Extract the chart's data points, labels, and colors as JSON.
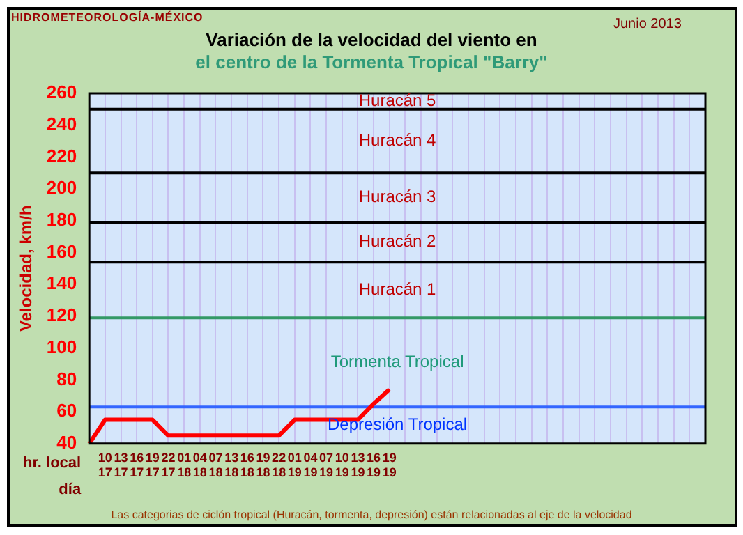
{
  "chart_data": {
    "type": "line",
    "title": "Variación de la velocidad del viento en",
    "subtitle": "el centro de la Tormenta Tropical \"Barry\"",
    "ylabel": "Velocidad, km/h",
    "xlabel": "hr. local\ndía",
    "categories": [
      null,
      "10\n17",
      "13\n17",
      "16\n17",
      "19\n17",
      "22\n17",
      "01\n18",
      "04\n18",
      "07\n18",
      "13\n18",
      "16\n18",
      "19\n18",
      "22\n18",
      "01\n19",
      "04\n19",
      "07\n19",
      "10\n19",
      "13\n19",
      "16\n19",
      "19\n19",
      null,
      null,
      null,
      null,
      null,
      null,
      null,
      null,
      null,
      null,
      null,
      null,
      null,
      null,
      null,
      null,
      null,
      null,
      null,
      null
    ],
    "series": [
      {
        "color": "#ff0000",
        "values": [
          40,
          55,
          55,
          55,
          55,
          45,
          45,
          45,
          45,
          45,
          45,
          45,
          45,
          55,
          55,
          55,
          55,
          55,
          65,
          74,
          null,
          null,
          null,
          null,
          null,
          null,
          null,
          null,
          null,
          null,
          null,
          null,
          null,
          null,
          null,
          null,
          null,
          null,
          null,
          null
        ]
      }
    ],
    "ylim": [
      40,
      260
    ],
    "yticks": [
      40,
      60,
      80,
      100,
      120,
      140,
      160,
      180,
      200,
      220,
      240,
      260
    ],
    "grid": "x",
    "legend": false,
    "marker": "none",
    "line_style": "solid",
    "ref_lines": [
      {
        "axis": "y",
        "value": 63,
        "color": "#3366ff",
        "label": "Tormenta Tropical"
      },
      {
        "axis": "y",
        "value": 119,
        "color": "#339966",
        "label": "Huracán 1"
      },
      {
        "axis": "y",
        "value": 154,
        "color": "#000000",
        "label": "Huracán 2"
      },
      {
        "axis": "y",
        "value": 179,
        "color": "#000000",
        "label": "Huracán 3"
      },
      {
        "axis": "y",
        "value": 210,
        "color": "#000000",
        "label": "Huracán 4"
      },
      {
        "axis": "y",
        "value": 250,
        "color": "#000000",
        "label": "Huracán 5"
      }
    ],
    "annotations": [
      "HIDROMETEOROLOGÍA-MÉXICO",
      "Junio 2013",
      "Las categorias de ciclón tropical (Huracán, tormenta, depresión) están relacionadas al eje de la velocidad",
      "Depresión Tropical"
    ]
  }
}
